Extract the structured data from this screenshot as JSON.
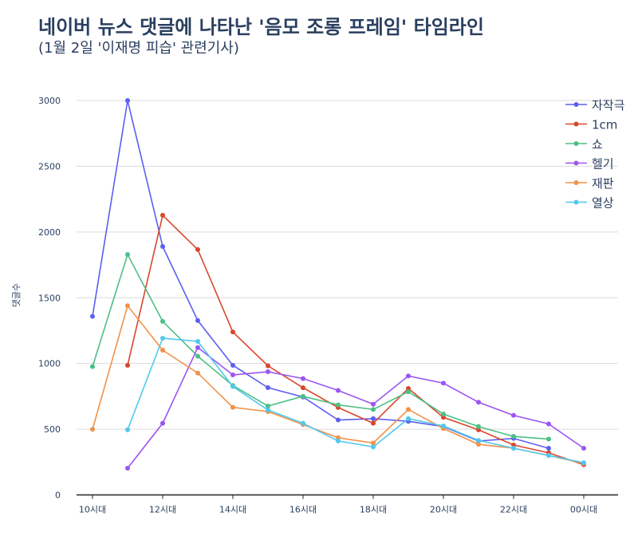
{
  "chart_data": {
    "type": "line",
    "title": "네이버 뉴스 댓글에 나타난 '음모 조롱 프레임' 타임라인",
    "subtitle": "(1월 2일 '이재명 피습' 관련기사)",
    "xlabel": "",
    "ylabel": "댓글수",
    "ylim": [
      0,
      3000
    ],
    "yticks": [
      0,
      500,
      1000,
      1500,
      2000,
      2500,
      3000
    ],
    "xticks": [
      {
        "x": 10,
        "label": "10시대"
      },
      {
        "x": 12,
        "label": "12시대"
      },
      {
        "x": 14,
        "label": "14시대"
      },
      {
        "x": 16,
        "label": "16시대"
      },
      {
        "x": 18,
        "label": "18시대"
      },
      {
        "x": 20,
        "label": "20시대"
      },
      {
        "x": 22,
        "label": "22시대"
      },
      {
        "x": 24,
        "label": "00시대"
      }
    ],
    "grid": true,
    "legend_position": "top-right",
    "series": [
      {
        "name": "자작극",
        "color": "#5b5ff0",
        "x": [
          10,
          11,
          12,
          13,
          14,
          15,
          16,
          17,
          18,
          19,
          20,
          21,
          22,
          23
        ],
        "values": [
          1358,
          3000,
          1890,
          1326,
          986,
          816,
          745,
          570,
          580,
          560,
          520,
          410,
          430,
          355
        ]
      },
      {
        "name": "1cm",
        "color": "#d9472b",
        "x": [
          11,
          12,
          13,
          14,
          15,
          16,
          17,
          18,
          19,
          20,
          21,
          22,
          23,
          24
        ],
        "values": [
          986,
          2127,
          1866,
          1239,
          982,
          815,
          665,
          545,
          810,
          590,
          495,
          380,
          320,
          230
        ]
      },
      {
        "name": "쇼",
        "color": "#4cbf85",
        "x": [
          10,
          11,
          12,
          13,
          14,
          15,
          16,
          17,
          18,
          19,
          20,
          21,
          22,
          23
        ],
        "values": [
          976,
          1829,
          1320,
          1055,
          832,
          676,
          750,
          685,
          650,
          785,
          615,
          520,
          445,
          425
        ]
      },
      {
        "name": "헬기",
        "color": "#9b55f0",
        "x": [
          11,
          12,
          13,
          14,
          15,
          16,
          17,
          18,
          19,
          20,
          21,
          22,
          23,
          24
        ],
        "values": [
          203,
          545,
          1121,
          913,
          937,
          885,
          795,
          690,
          905,
          850,
          705,
          605,
          540,
          355
        ]
      },
      {
        "name": "재판",
        "color": "#f0924a",
        "x": [
          10,
          11,
          12,
          13,
          14,
          15,
          16,
          17,
          18,
          19,
          20,
          21,
          22,
          23,
          24
        ],
        "values": [
          499,
          1439,
          1101,
          927,
          666,
          634,
          535,
          435,
          395,
          650,
          505,
          385,
          355,
          300,
          240
        ]
      },
      {
        "name": "열상",
        "color": "#50c8ee",
        "x": [
          11,
          12,
          13,
          14,
          15,
          16,
          17,
          18,
          19,
          20,
          21,
          22,
          23,
          24
        ],
        "values": [
          495,
          1192,
          1168,
          824,
          646,
          545,
          410,
          365,
          580,
          525,
          415,
          355,
          300,
          245
        ]
      }
    ]
  }
}
